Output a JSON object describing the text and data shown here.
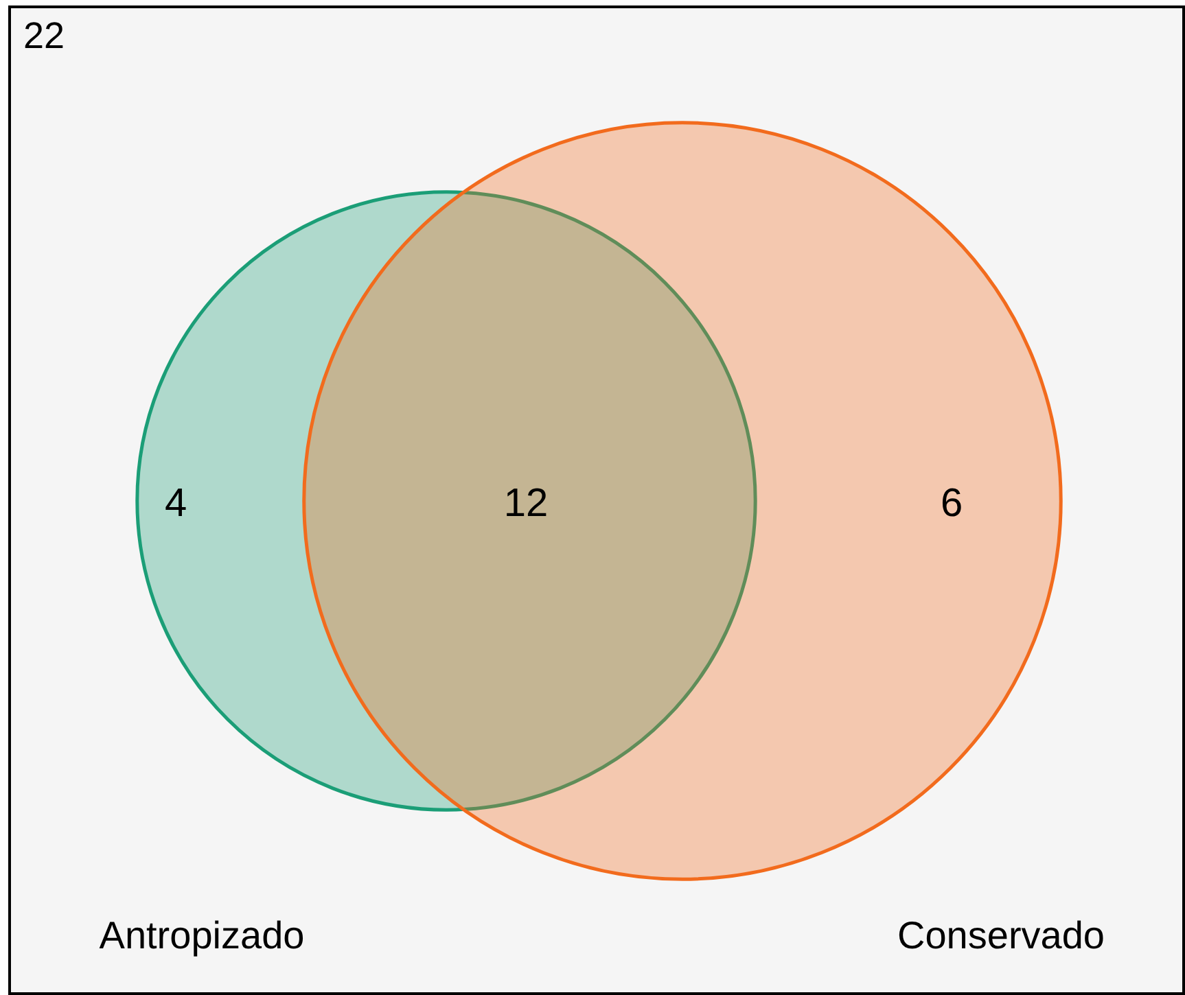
{
  "chart_data": {
    "type": "other",
    "categories": [
      null,
      null,
      null
    ],
    "values": [
      4,
      12,
      6
    ],
    "data_labels": true,
    "annotations": [
      "22",
      "Antropizado",
      "Conservado"
    ]
  }
}
